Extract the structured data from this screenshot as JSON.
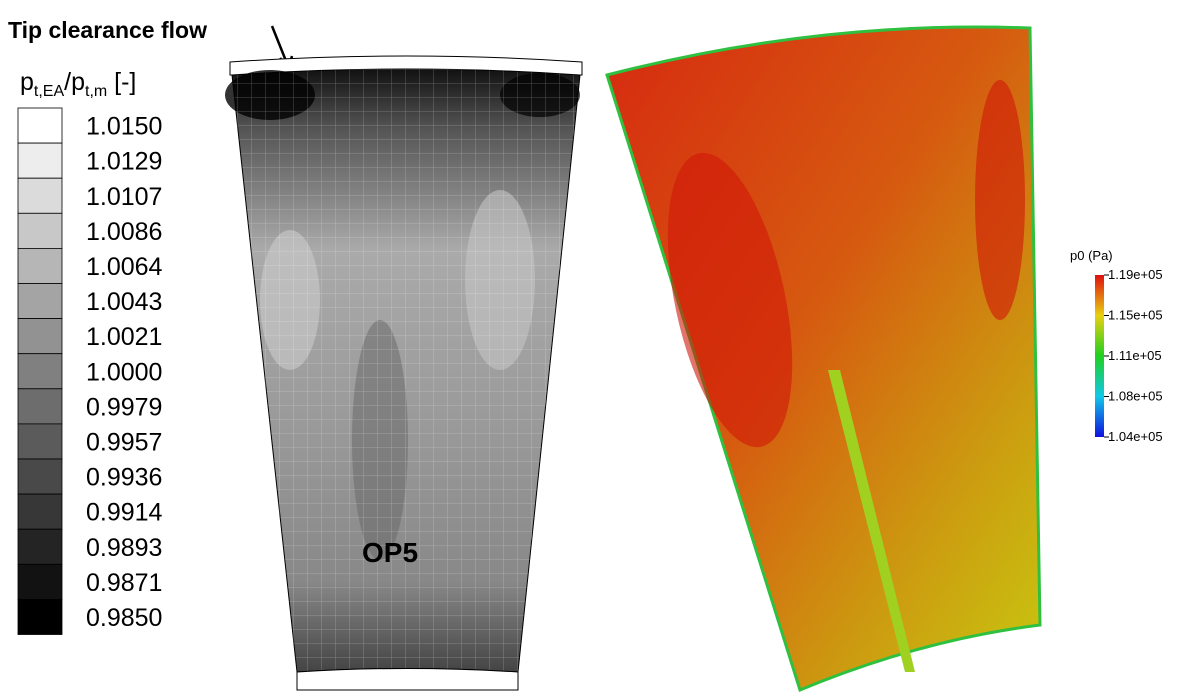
{
  "annotation": "Tip clearance flow",
  "panel_label": "OP5",
  "left_legend": {
    "title_parts": [
      "p",
      "t,EA",
      "/p",
      "t,m",
      " [-]"
    ],
    "labels": [
      "1.0150",
      "1.0129",
      "1.0107",
      "1.0086",
      "1.0064",
      "1.0043",
      "1.0021",
      "1.0000",
      "0.9979",
      "0.9957",
      "0.9936",
      "0.9914",
      "0.9893",
      "0.9871",
      "0.9850"
    ]
  },
  "right_legend": {
    "title": "p0 (Pa)",
    "labels": [
      "1.19e+05",
      "1.15e+05",
      "1.11e+05",
      "1.08e+05",
      "1.04e+05"
    ]
  }
}
